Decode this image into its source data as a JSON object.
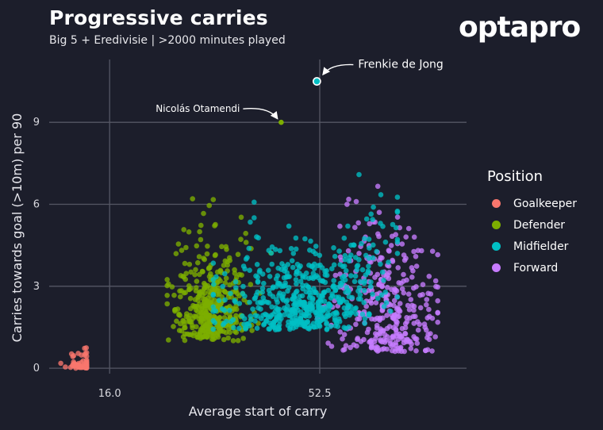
{
  "title": "Progressive carries",
  "subtitle": "Big 5 + Eredivisie  |  >2000 minutes played",
  "logo_text": "optapro",
  "chart_data": {
    "type": "scatter",
    "xlabel": "Average start of carry",
    "ylabel": "Carries towards goal (>10m) per 90",
    "xticks": [
      16.0,
      52.5
    ],
    "xtick_labels": [
      "16.0",
      "52.5"
    ],
    "yticks": [
      0,
      3,
      6,
      9
    ],
    "xlim": [
      5.5,
      78
    ],
    "ylim": [
      -0.2,
      11.3
    ],
    "grid": true,
    "legend_position": "right",
    "legend_title": "Position",
    "series": [
      {
        "name": "Goalkeeper",
        "color": "#f8766d",
        "n": 70,
        "cx": [
          7,
          12
        ],
        "cy": [
          0,
          0.5
        ],
        "mode": "gk"
      },
      {
        "name": "Defender",
        "color": "#7cae00",
        "n": 420,
        "cx": [
          26,
          42
        ],
        "cy": [
          0.2,
          6.2
        ],
        "mode": "def"
      },
      {
        "name": "Midfielder",
        "color": "#00bfc4",
        "n": 560,
        "cx": [
          34,
          66
        ],
        "cy": [
          0.2,
          8.6
        ],
        "mode": "mid"
      },
      {
        "name": "Forward",
        "color": "#c77cff",
        "n": 340,
        "cx": [
          50,
          73
        ],
        "cy": [
          0.2,
          7.8
        ],
        "mode": "fwd"
      }
    ],
    "highlights": [
      {
        "label": "Frenkie de Jong",
        "x": 52.0,
        "y": 10.5,
        "color": "#00bfc4"
      },
      {
        "label": "Nicolás Otamendi",
        "x": 45.8,
        "y": 9.0,
        "color": "#7cae00"
      }
    ]
  }
}
